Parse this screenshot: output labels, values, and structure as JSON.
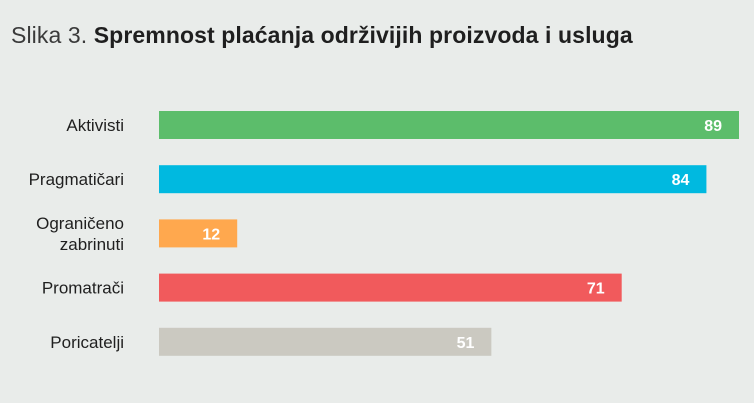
{
  "figure": {
    "prefix": "Slika 3.",
    "title": "Spremnost plaćanja održivijih proizvoda i usluga"
  },
  "chart_data": {
    "type": "bar",
    "orientation": "horizontal",
    "title": "Spremnost plaćanja održivijih proizvoda i usluga",
    "categories": [
      [
        "Aktivisti"
      ],
      [
        "Pragmatičari"
      ],
      [
        "Ograničeno",
        "zabrinuti"
      ],
      [
        "Promatrači"
      ],
      [
        "Poricatelji"
      ]
    ],
    "values": [
      89,
      84,
      12,
      71,
      51
    ],
    "colors": [
      "#5cbd6b",
      "#00b9e0",
      "#ffa84e",
      "#f15a5c",
      "#cbc9c1"
    ],
    "xlim": [
      0,
      89
    ],
    "grid": false,
    "legend": "none"
  }
}
